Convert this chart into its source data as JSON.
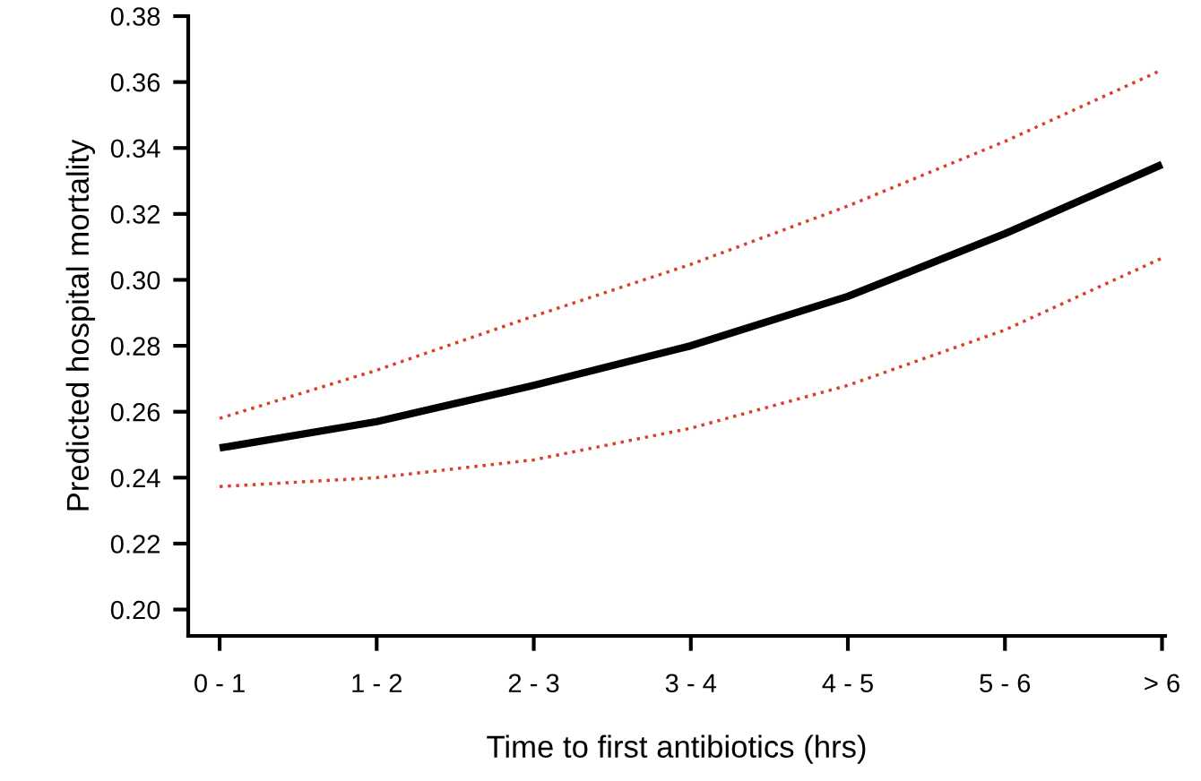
{
  "chart_data": {
    "type": "line",
    "xlabel": "Time to first antibiotics (hrs)",
    "ylabel": "Predicted hospital mortality",
    "categories": [
      "0 - 1",
      "1 - 2",
      "2 - 3",
      "3 - 4",
      "4 - 5",
      "5 - 6",
      "> 6"
    ],
    "series": [
      {
        "color": "#d9402a",
        "line_style": "dotted",
        "values": [
          0.258,
          0.2726,
          0.289,
          0.3047,
          0.3224,
          0.342,
          0.3637
        ]
      },
      {
        "color": "#000000",
        "line_style": "solid",
        "values": [
          0.249,
          0.257,
          0.268,
          0.28,
          0.295,
          0.314,
          0.335
        ]
      },
      {
        "color": "#d9402a",
        "line_style": "dotted",
        "values": [
          0.2373,
          0.24,
          0.2454,
          0.255,
          0.268,
          0.2848,
          0.3066
        ]
      }
    ],
    "ylim": [
      0.192,
      0.38
    ],
    "yticks": [
      {
        "value": 0.2,
        "label": "0.20"
      },
      {
        "value": 0.22,
        "label": "0.22"
      },
      {
        "value": 0.24,
        "label": "0.24"
      },
      {
        "value": 0.26,
        "label": "0.26"
      },
      {
        "value": 0.28,
        "label": "0.28"
      },
      {
        "value": 0.3,
        "label": "0.30"
      },
      {
        "value": 0.32,
        "label": "0.32"
      },
      {
        "value": 0.34,
        "label": "0.34"
      },
      {
        "value": 0.36,
        "label": "0.36"
      },
      {
        "value": 0.38,
        "label": "0.38"
      }
    ],
    "grid": false,
    "legend": false,
    "marker": "none"
  }
}
